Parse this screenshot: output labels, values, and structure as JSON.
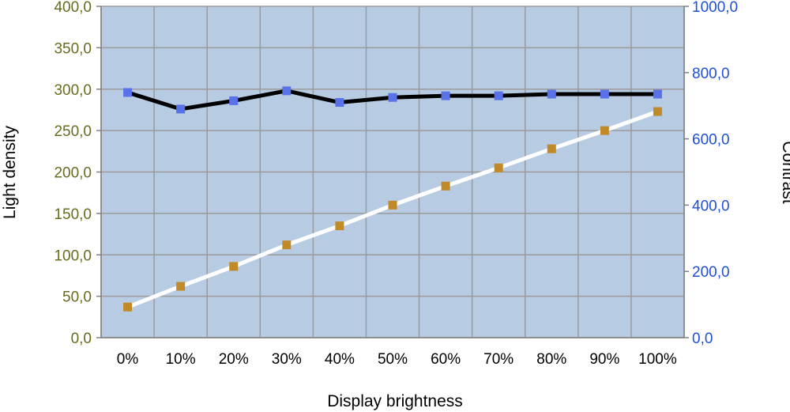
{
  "chart_data": {
    "type": "line",
    "categories": [
      "0%",
      "10%",
      "20%",
      "30%",
      "40%",
      "50%",
      "60%",
      "70%",
      "80%",
      "90%",
      "100%"
    ],
    "xlabel": "Display brightness",
    "ylabel": "Light density",
    "y2label": "Contrast",
    "ylim": [
      0,
      400
    ],
    "y2lim": [
      0,
      1000
    ],
    "yticks": [
      "0,0",
      "50,0",
      "100,0",
      "150,0",
      "200,0",
      "250,0",
      "300,0",
      "350,0",
      "400,0"
    ],
    "y2ticks": [
      "0,0",
      "200,0",
      "400,0",
      "600,0",
      "800,0",
      "1000,0"
    ],
    "grid": true,
    "series": [
      {
        "axis": "left",
        "line_color": "#ffffff",
        "marker_color": "#c08a28",
        "values": [
          37,
          62,
          86,
          112,
          135,
          160,
          183,
          205,
          228,
          250,
          273
        ]
      },
      {
        "axis": "right",
        "line_color": "#000000",
        "marker_color": "#5a72e8",
        "values": [
          740,
          690,
          715,
          745,
          710,
          725,
          730,
          730,
          735,
          735,
          735
        ]
      }
    ],
    "colors": {
      "plot_background": "#b7cbe3",
      "grid": "#9b9b9b",
      "left_axis_text": "#6b6b1f",
      "right_axis_text": "#1f4fd8"
    }
  }
}
